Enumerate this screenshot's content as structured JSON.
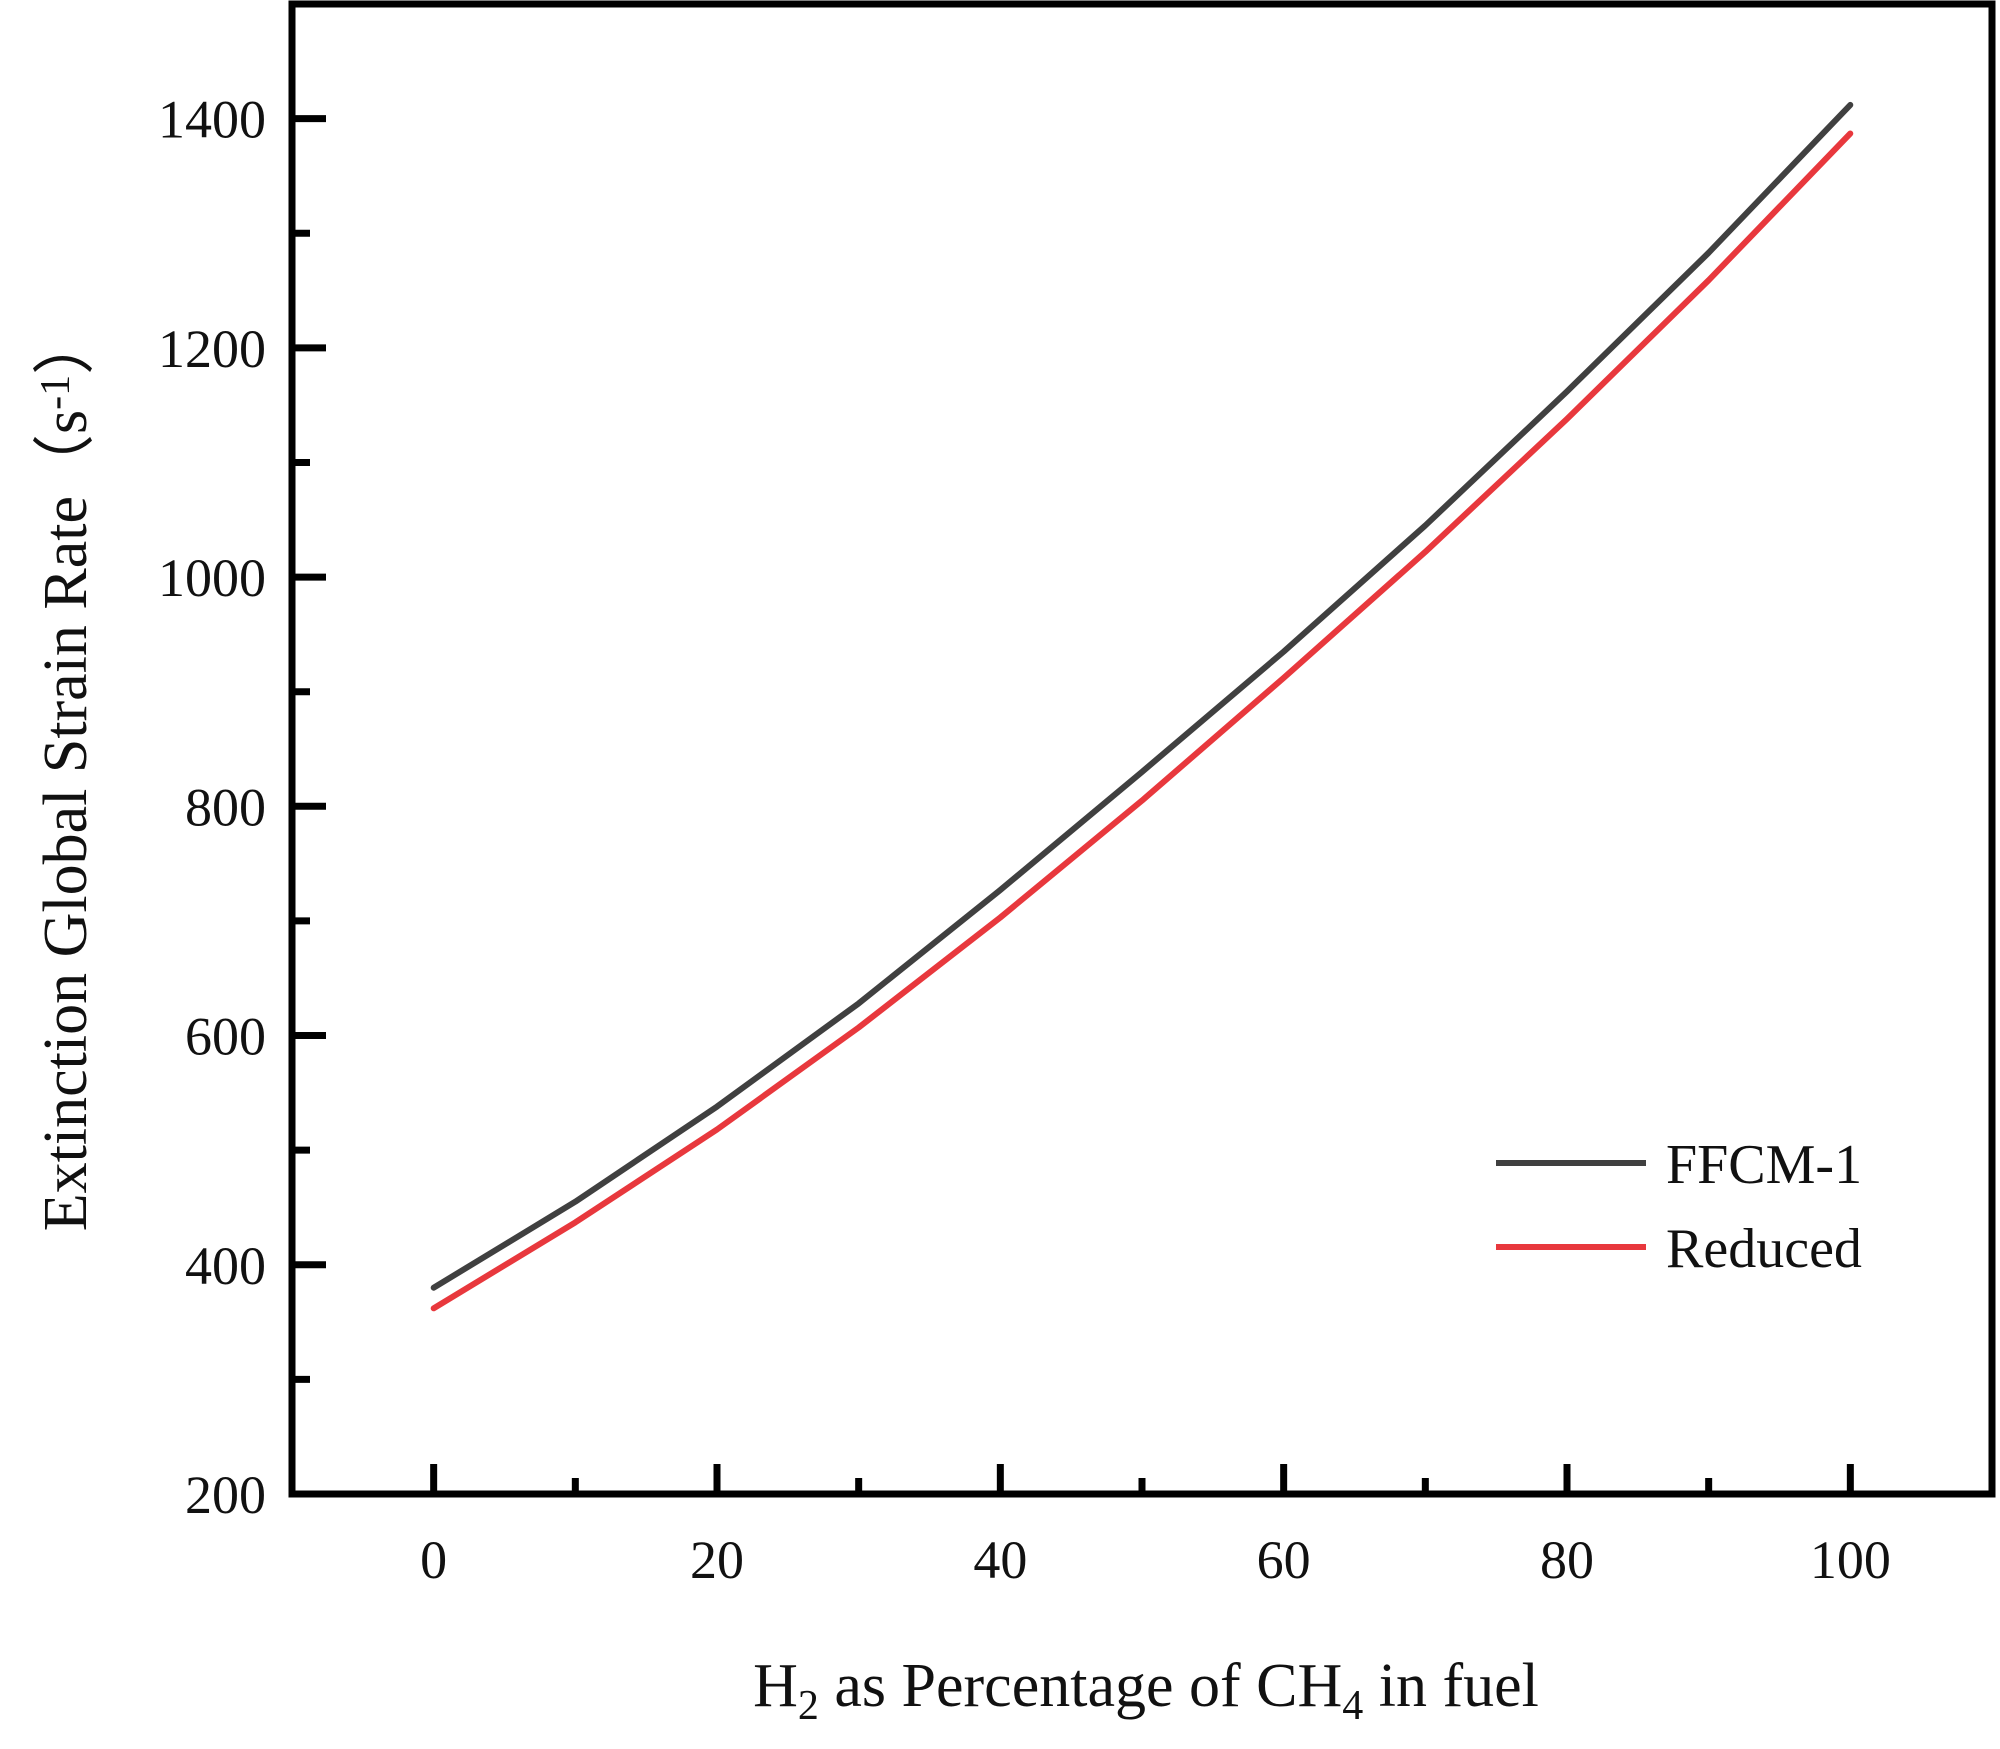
{
  "chart_data": {
    "type": "line",
    "title": "",
    "xlabel": {
      "parts": [
        {
          "text": "H",
          "sub": false
        },
        {
          "text": "2",
          "sub": true
        },
        {
          "text": " as Percentage of CH",
          "sub": false
        },
        {
          "text": "4",
          "sub": true
        },
        {
          "text": " in fuel",
          "sub": false
        }
      ]
    },
    "ylabel": {
      "parts": [
        {
          "text": "Extinction Global Strain Rate（s",
          "sup": false
        },
        {
          "text": "-1",
          "sup": true
        },
        {
          "text": "）",
          "sup": false
        }
      ]
    },
    "xlim": [
      -10,
      110
    ],
    "ylim": [
      200,
      1500
    ],
    "xticks": [
      0,
      20,
      40,
      60,
      80,
      100
    ],
    "xticks_minor": [
      10,
      30,
      50,
      70,
      90
    ],
    "yticks": [
      200,
      400,
      600,
      800,
      1000,
      1200,
      1400
    ],
    "yticks_minor": [
      300,
      500,
      700,
      900,
      1100,
      1300
    ],
    "grid": false,
    "legend_position": "lower-right",
    "series": [
      {
        "name": "FFCM-1",
        "color": "#404040",
        "x": [
          0,
          10,
          20,
          30,
          40,
          50,
          60,
          70,
          80,
          90,
          100
        ],
        "y": [
          380,
          455,
          538,
          628,
          727,
          830,
          935,
          1045,
          1162,
          1283,
          1412
        ]
      },
      {
        "name": "Reduced",
        "color": "#e8383d",
        "x": [
          0,
          10,
          20,
          30,
          40,
          50,
          60,
          70,
          80,
          90,
          100
        ],
        "y": [
          362,
          437,
          518,
          607,
          703,
          805,
          912,
          1022,
          1138,
          1259,
          1387
        ]
      }
    ]
  }
}
